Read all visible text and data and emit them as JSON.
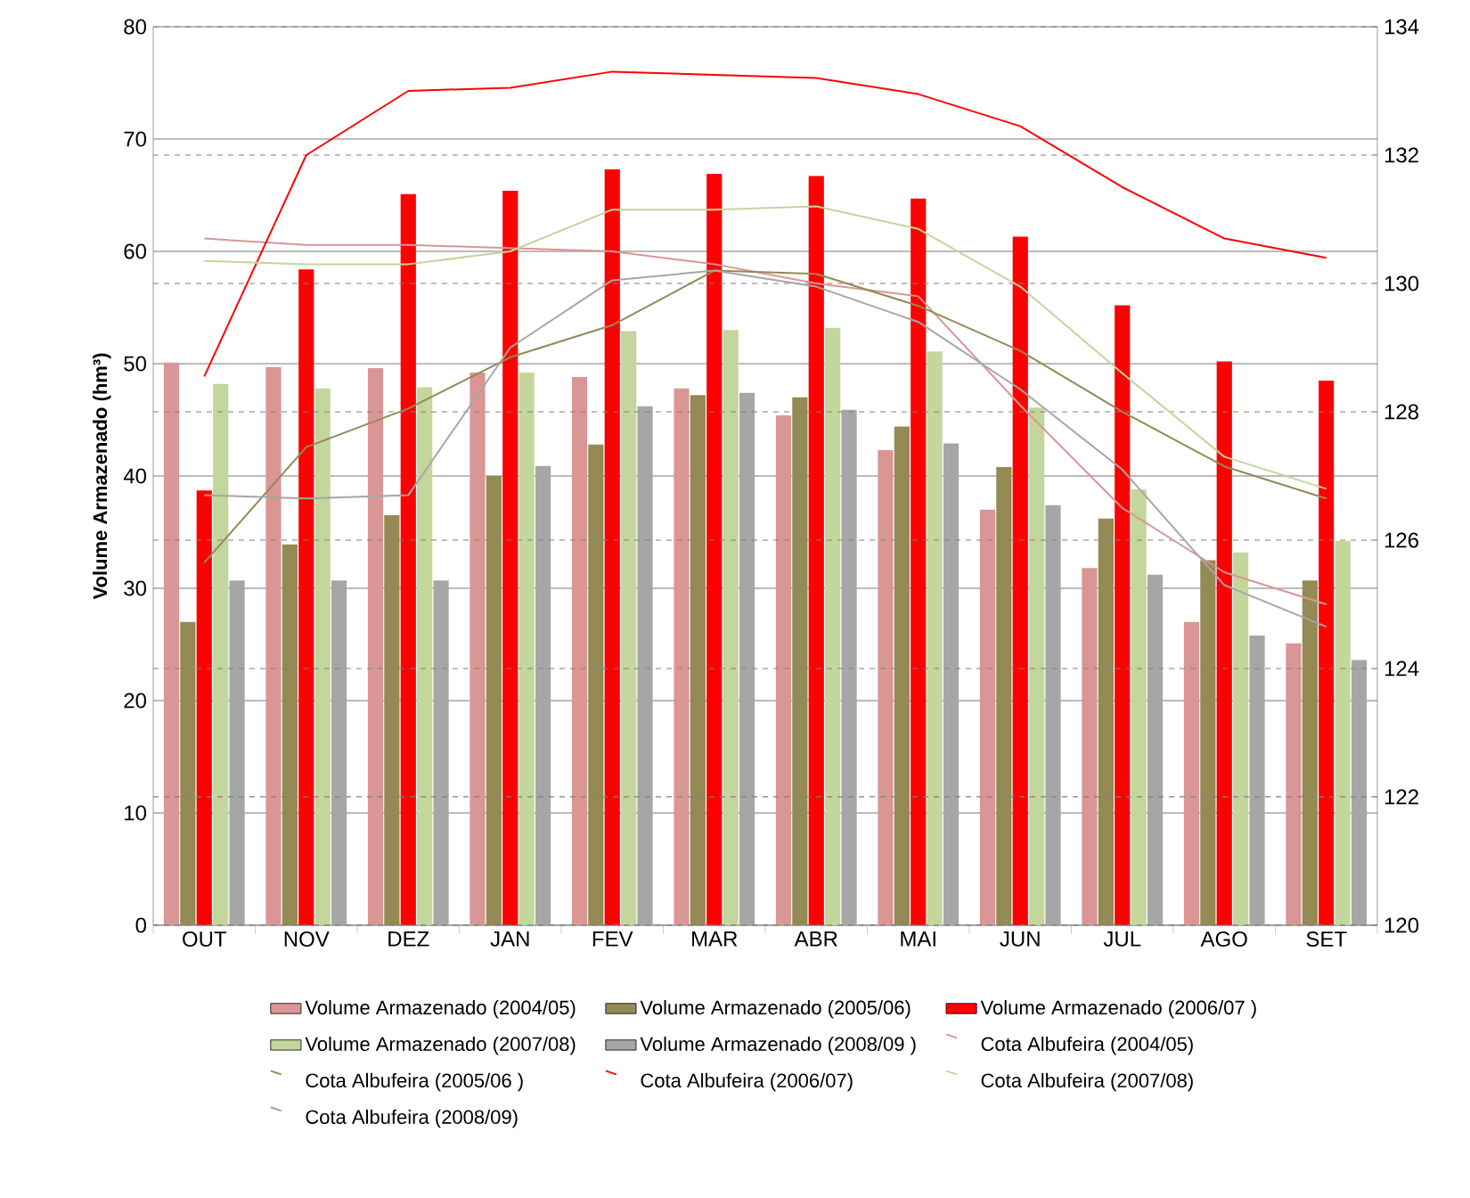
{
  "chart_data": {
    "type": "bar",
    "ylabel": "Volume Armazenado (hm³)",
    "categories": [
      "OUT",
      "NOV",
      "DEZ",
      "JAN",
      "FEV",
      "MAR",
      "ABR",
      "MAI",
      "JUN",
      "JUL",
      "AGO",
      "SET"
    ],
    "ylim": [
      0,
      80
    ],
    "yticks": [
      0,
      10,
      20,
      30,
      40,
      50,
      60,
      70,
      80
    ],
    "y2lim": [
      120,
      134
    ],
    "y2ticks": [
      120,
      122,
      124,
      126,
      128,
      130,
      132,
      134
    ],
    "grid": "y",
    "legend": "bottom",
    "marker": "none",
    "series": [
      {
        "name": "Volume Armazenado (2004/05)",
        "color": "#d99694",
        "values": [
          50.1,
          49.7,
          49.6,
          49.2,
          48.8,
          47.8,
          45.4,
          42.3,
          37.0,
          31.8,
          27.0,
          25.1
        ]
      },
      {
        "name": "Volume Armazenado (2005/06)",
        "color": "#948a54",
        "values": [
          27.0,
          33.9,
          36.5,
          40.0,
          42.8,
          47.2,
          47.0,
          44.4,
          40.8,
          36.2,
          32.5,
          30.7
        ]
      },
      {
        "name": "Volume Armazenado (2006/07 )",
        "color": "#ff0000",
        "values": [
          38.7,
          58.4,
          65.1,
          65.4,
          67.3,
          66.9,
          66.7,
          64.7,
          61.3,
          55.2,
          50.2,
          48.5
        ]
      },
      {
        "name": "Volume Armazenado (2007/08)",
        "color": "#c3d69b",
        "values": [
          48.2,
          47.8,
          47.9,
          49.2,
          52.9,
          53.0,
          53.2,
          51.1,
          46.1,
          38.8,
          33.2,
          34.2
        ]
      },
      {
        "name": "Volume Armazenado (2008/09 )",
        "color": "#a6a6a6",
        "values": [
          30.7,
          30.7,
          30.7,
          40.9,
          46.2,
          47.4,
          45.9,
          42.9,
          37.4,
          31.2,
          25.8,
          23.6
        ]
      },
      {
        "name": "Cota Albufeira (2004/05)",
        "type": "line",
        "axis": "y2",
        "color": "#d99694",
        "values": [
          130.7,
          130.6,
          130.6,
          130.55,
          130.5,
          130.3,
          130.0,
          129.8,
          128.1,
          126.5,
          125.5,
          125.0
        ]
      },
      {
        "name": "Cota Albufeira (2005/06 )",
        "type": "line",
        "axis": "y2",
        "color": "#948a54",
        "values": [
          125.65,
          127.45,
          128.05,
          128.85,
          129.35,
          130.2,
          130.15,
          129.65,
          128.95,
          128.0,
          127.15,
          126.65
        ]
      },
      {
        "name": "Cota Albufeira (2006/07)",
        "type": "line",
        "axis": "y2",
        "color": "#ff0000",
        "values": [
          128.55,
          132.0,
          133.0,
          133.05,
          133.3,
          133.25,
          133.2,
          132.95,
          132.45,
          131.5,
          130.7,
          130.4
        ]
      },
      {
        "name": "Cota Albufeira (2007/08)",
        "type": "line",
        "axis": "y2",
        "color": "#c3d69b",
        "values": [
          130.35,
          130.3,
          130.3,
          130.5,
          131.15,
          131.15,
          131.2,
          130.85,
          129.95,
          128.6,
          127.3,
          126.8
        ]
      },
      {
        "name": "Cota Albufeira (2008/09)",
        "type": "line",
        "axis": "y2",
        "color": "#a6a6a6",
        "values": [
          126.7,
          126.65,
          126.7,
          129.0,
          130.05,
          130.2,
          129.95,
          129.4,
          128.35,
          127.1,
          125.3,
          124.65
        ]
      }
    ]
  }
}
